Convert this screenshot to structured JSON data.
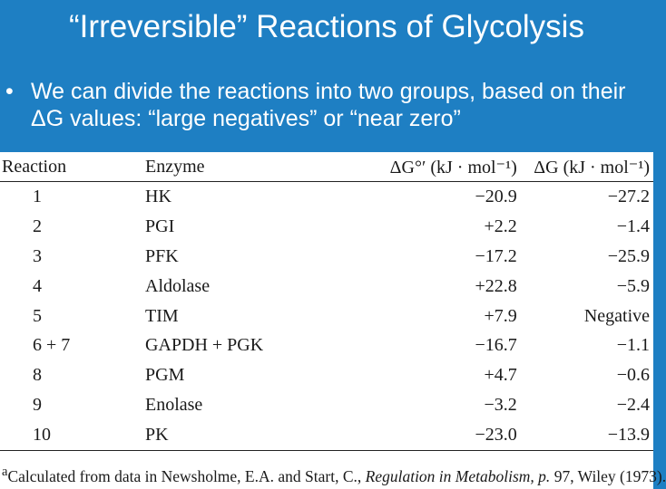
{
  "title": "“Irreversible” Reactions of Glycolysis",
  "bullet": {
    "symbol": "•",
    "text": "We can divide the reactions into two groups, based on their ΔG values: “large negatives” or “near zero”"
  },
  "table": {
    "headers": {
      "reaction": "Reaction",
      "enzyme": "Enzyme",
      "delta_g0": "ΔG°′ (kJ · mol⁻¹)",
      "delta_g": "ΔG (kJ · mol⁻¹)"
    },
    "rows": [
      {
        "reaction": "1",
        "enzyme": "HK",
        "delta_g0": "−20.9",
        "delta_g": "−27.2"
      },
      {
        "reaction": "2",
        "enzyme": "PGI",
        "delta_g0": "+2.2",
        "delta_g": "−1.4"
      },
      {
        "reaction": "3",
        "enzyme": "PFK",
        "delta_g0": "−17.2",
        "delta_g": "−25.9"
      },
      {
        "reaction": "4",
        "enzyme": "Aldolase",
        "delta_g0": "+22.8",
        "delta_g": "−5.9"
      },
      {
        "reaction": "5",
        "enzyme": "TIM",
        "delta_g0": "+7.9",
        "delta_g": "Negative"
      },
      {
        "reaction": "6 + 7",
        "enzyme": "GAPDH + PGK",
        "delta_g0": "−16.7",
        "delta_g": "−1.1"
      },
      {
        "reaction": "8",
        "enzyme": "PGM",
        "delta_g0": "+4.7",
        "delta_g": "−0.6"
      },
      {
        "reaction": "9",
        "enzyme": "Enolase",
        "delta_g0": "−3.2",
        "delta_g": "−2.4"
      },
      {
        "reaction": "10",
        "enzyme": "PK",
        "delta_g0": "−23.0",
        "delta_g": "−13.9"
      }
    ]
  },
  "footnote": {
    "marker": "a",
    "prefix": "Calculated from data in Newsholme, E.A. and Start, C., ",
    "source_title": "Regulation in Metabolism, p.",
    "suffix": " 97, Wiley (1973)."
  },
  "colors": {
    "background": "#1e7fc3",
    "panel": "#ffffff",
    "text_on_blue": "#ffffff"
  }
}
